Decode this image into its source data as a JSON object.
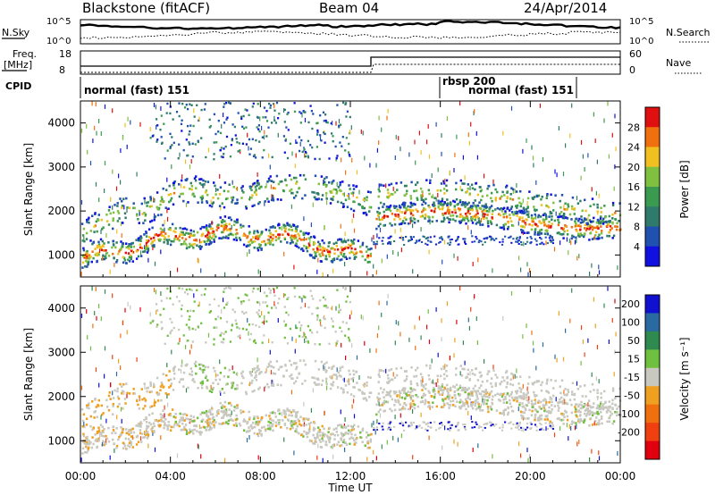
{
  "header": {
    "station": "Blackstone (fitACF)",
    "beam": "Beam 04",
    "date": "24/Apr/2014"
  },
  "top_panels": {
    "nsky_label": "N.Sky",
    "nsky_ticks": [
      "10^5",
      "10^0"
    ],
    "nsearch_label": "N.Search",
    "nsearch_ticks": [
      "10^5",
      "10^0"
    ],
    "freq_label": "Freq.",
    "freq_unit": "[MHz]",
    "freq_ticks": [
      "18",
      "8"
    ],
    "nave_label": "Nave",
    "nave_ticks": [
      "60",
      "0"
    ],
    "cpid_label": "CPID",
    "cpid_segments": [
      "normal (fast) 151",
      "rbsp 200",
      "normal (fast) 151"
    ]
  },
  "chart_data": [
    {
      "type": "heatmap",
      "panel": "power",
      "xlabel": "Time UT",
      "ylabel": "Slant Range [km]",
      "x_ticks": [
        "00:00",
        "04:00",
        "08:00",
        "12:00",
        "16:00",
        "20:00",
        "00:00"
      ],
      "x_range_hours": [
        0,
        24
      ],
      "ylim": [
        500,
        4500
      ],
      "y_ticks": [
        1000,
        2000,
        3000,
        4000
      ],
      "colorbar": {
        "label": "Power [dB]",
        "ticks": [
          "4",
          "8",
          "12",
          "16",
          "20",
          "24",
          "28"
        ],
        "colors": [
          "#1010e0",
          "#2050b0",
          "#2f7a6a",
          "#3a9a50",
          "#7fc040",
          "#f0c020",
          "#f07010",
          "#e01010"
        ]
      }
    },
    {
      "type": "heatmap",
      "panel": "velocity",
      "xlabel": "Time UT",
      "ylabel": "Slant Range [km]",
      "x_ticks": [
        "00:00",
        "04:00",
        "08:00",
        "12:00",
        "16:00",
        "20:00",
        "00:00"
      ],
      "x_range_hours": [
        0,
        24
      ],
      "ylim": [
        500,
        4500
      ],
      "y_ticks": [
        1000,
        2000,
        3000,
        4000
      ],
      "colorbar": {
        "label": "Velocity [m s⁻¹]",
        "ticks": [
          "200",
          "100",
          "50",
          "15",
          "-15",
          "-50",
          "-100",
          "-200"
        ],
        "colors": [
          "#1010d0",
          "#2a6aa0",
          "#2f8a50",
          "#70c040",
          "#c8c8c0",
          "#f0a020",
          "#f07010",
          "#f04010",
          "#e00010"
        ]
      }
    }
  ]
}
